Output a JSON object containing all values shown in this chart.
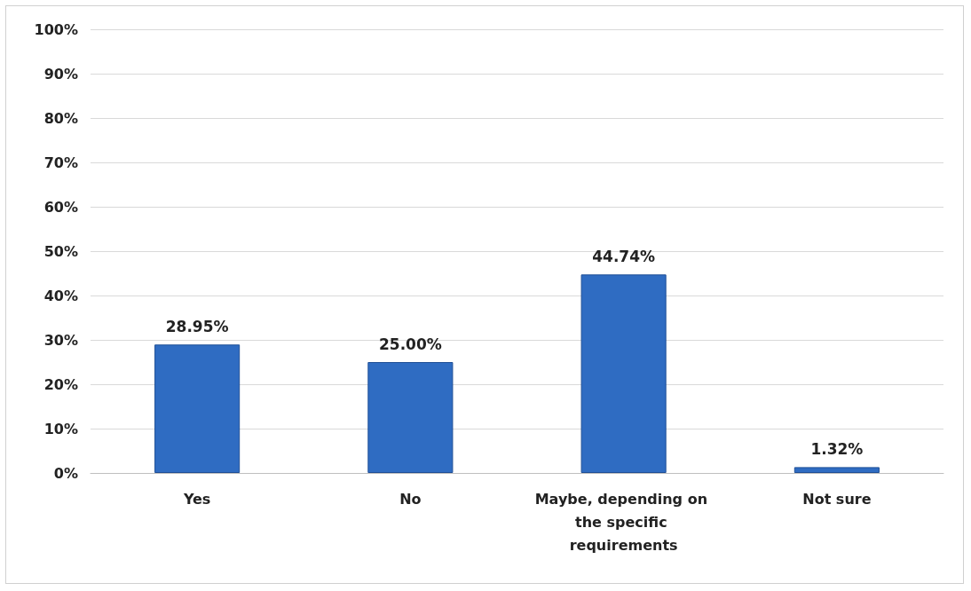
{
  "chart_data": {
    "type": "bar",
    "categories": [
      "Yes",
      "No",
      "Maybe, depending on the specific requirements",
      "Not sure"
    ],
    "values": [
      28.95,
      25.0,
      44.74,
      1.32
    ],
    "value_labels": [
      "28.95%",
      "25.00%",
      "44.74%",
      "1.32%"
    ],
    "color": "#2f6cc2",
    "ylim": [
      0,
      100
    ],
    "yticks": [
      {
        "value": 0,
        "label": "0%"
      },
      {
        "value": 10,
        "label": "10%"
      },
      {
        "value": 20,
        "label": "20%"
      },
      {
        "value": 30,
        "label": "30%"
      },
      {
        "value": 40,
        "label": "40%"
      },
      {
        "value": 50,
        "label": "50%"
      },
      {
        "value": 60,
        "label": "60%"
      },
      {
        "value": 70,
        "label": "70%"
      },
      {
        "value": 80,
        "label": "80%"
      },
      {
        "value": 90,
        "label": "90%"
      },
      {
        "value": 100,
        "label": "100%"
      }
    ],
    "grid": "y"
  }
}
